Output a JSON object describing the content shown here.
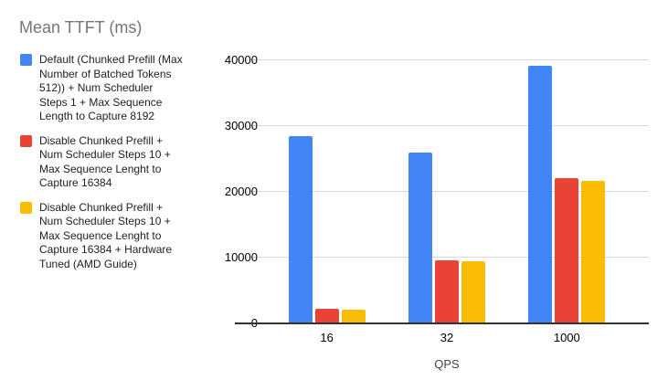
{
  "title": "Mean TTFT (ms)",
  "colors": {
    "series_blue": "#4285F4",
    "series_red": "#EA4335",
    "series_yellow": "#FBBC04",
    "gridline": "#d9d9d9",
    "axis_line": "#333333",
    "title_text": "#757575"
  },
  "chart_data": {
    "type": "bar",
    "title": "Mean TTFT (ms)",
    "xlabel": "QPS",
    "ylabel": "",
    "categories": [
      "16",
      "32",
      "1000"
    ],
    "series": [
      {
        "name": "Default (Chunked Prefill (Max Number of Batched Tokens 512)) + Num Scheduler Steps 1 + Max Sequence Length to Capture 8192",
        "color": "#4285F4",
        "values": [
          28300,
          25900,
          39000
        ]
      },
      {
        "name": "Disable Chunked Prefill + Num Scheduler Steps 10 + Max Sequence Lenght to Capture 16384",
        "color": "#EA4335",
        "values": [
          2100,
          9400,
          21900
        ]
      },
      {
        "name": "Disable Chunked Prefill + Num Scheduler Steps 10 + Max Sequence Lenght to Capture 16384 + Hardware Tuned (AMD Guide)",
        "color": "#FBBC04",
        "values": [
          2000,
          9300,
          21500
        ]
      }
    ],
    "ylim": [
      0,
      40000
    ],
    "yticks": [
      0,
      10000,
      20000,
      30000,
      40000
    ],
    "ytick_labels": [
      "0",
      "10000",
      "20000",
      "30000",
      "40000"
    ],
    "grid": true,
    "legend_position": "left"
  }
}
